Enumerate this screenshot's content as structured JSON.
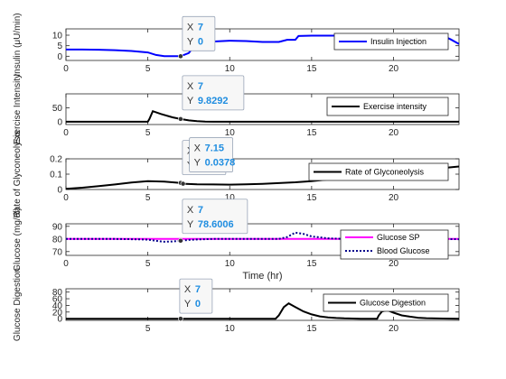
{
  "colors": {
    "insulin": "#0000ff",
    "black": "#000000",
    "glucose_sp": "#ff00ff",
    "blood_glucose": "#00008b",
    "datatip_value": "#1f8de0"
  },
  "chart_data": [
    {
      "type": "line",
      "ylabel": "Insulin (μU/min)",
      "xlim": [
        0,
        24
      ],
      "ylim": [
        -2,
        13
      ],
      "yticks": [
        "0",
        "5",
        "10"
      ],
      "ytick_values": [
        0,
        5,
        10
      ],
      "xticks": [
        "0",
        "5",
        "10",
        "15",
        "20"
      ],
      "xtick_values": [
        0,
        5,
        10,
        15,
        20
      ],
      "legend": [
        "Insulin Injection"
      ],
      "legend_position": "right",
      "series": [
        {
          "name": "Insulin Injection",
          "color": "#0000ff",
          "width": 2,
          "dash": "",
          "x": [
            0,
            1,
            2,
            3,
            4,
            5,
            5.5,
            6,
            7,
            7.5,
            8,
            9,
            10,
            11,
            12,
            13,
            13.5,
            14,
            14.2,
            15,
            16,
            17,
            18,
            19,
            20,
            21,
            22,
            23,
            23.5,
            24
          ],
          "y": [
            3.2,
            3.2,
            3.1,
            2.9,
            2.5,
            1.8,
            0.6,
            0,
            0,
            1.5,
            6.5,
            7,
            7.4,
            7.2,
            6.8,
            6.8,
            7.8,
            7.8,
            9.6,
            9.8,
            9.8,
            9.8,
            9.8,
            9.8,
            9.8,
            9.8,
            9.8,
            9.8,
            8,
            5.8
          ]
        }
      ],
      "datatips": [
        {
          "x_label": "X",
          "x_value": "7",
          "y_label": "Y",
          "y_value": "0",
          "x": 7,
          "y": 0
        }
      ]
    },
    {
      "type": "line",
      "ylabel": "Exercise Intensity",
      "xlim": [
        0,
        24
      ],
      "ylim": [
        -10,
        100
      ],
      "yticks": [
        "0",
        "50"
      ],
      "ytick_values": [
        0,
        50
      ],
      "xticks": [
        "0",
        "5",
        "10",
        "15",
        "20"
      ],
      "xtick_values": [
        0,
        5,
        10,
        15,
        20
      ],
      "legend": [
        "Exercise intensity"
      ],
      "legend_position": "right",
      "series": [
        {
          "name": "Exercise intensity",
          "color": "#000000",
          "width": 2,
          "dash": "",
          "x": [
            0,
            5,
            5.1,
            5.3,
            5.8,
            6.5,
            7,
            7.5,
            8,
            8.5,
            9,
            24
          ],
          "y": [
            0,
            0,
            10,
            38,
            28,
            16,
            9.8,
            5,
            2,
            0.5,
            0,
            0
          ]
        }
      ],
      "datatips": [
        {
          "x_label": "X",
          "x_value": "7",
          "y_label": "Y",
          "y_value": "9.8292",
          "x": 7,
          "y": 9.8292
        }
      ]
    },
    {
      "type": "line",
      "ylabel": "Rate of Glyconeolysis",
      "xlim": [
        0,
        24
      ],
      "ylim": [
        0,
        0.2
      ],
      "yticks": [
        "0",
        "0.1",
        "0.2"
      ],
      "ytick_values": [
        0,
        0.1,
        0.2
      ],
      "xticks": [
        "0",
        "5",
        "10",
        "15",
        "20"
      ],
      "xtick_values": [
        0,
        5,
        10,
        15,
        20
      ],
      "legend": [
        "Rate of Glyconeolysis"
      ],
      "legend_position": "right",
      "series": [
        {
          "name": "Rate of Glyconeolysis",
          "color": "#000000",
          "width": 2,
          "dash": "",
          "x": [
            0,
            1,
            2,
            3,
            4,
            5,
            6,
            7,
            7.15,
            8,
            9,
            10,
            11,
            12,
            13,
            14,
            15,
            16,
            17,
            18,
            19,
            20,
            21,
            22,
            23,
            24
          ],
          "y": [
            0.005,
            0.012,
            0.022,
            0.033,
            0.045,
            0.055,
            0.052,
            0.043,
            0.0378,
            0.034,
            0.033,
            0.032,
            0.034,
            0.037,
            0.042,
            0.047,
            0.055,
            0.065,
            0.078,
            0.09,
            0.1,
            0.11,
            0.12,
            0.13,
            0.14,
            0.15
          ]
        }
      ],
      "datatips": [
        {
          "x_label": "X",
          "x_value": "7",
          "y_label": "Y",
          "y_value": "0.0432",
          "x": 7,
          "y": 0.0432
        },
        {
          "x_label": "X",
          "x_value": "7.15",
          "y_label": "Y",
          "y_value": "0.0378",
          "x": 7.15,
          "y": 0.0378
        }
      ]
    },
    {
      "type": "line",
      "ylabel": "Glucose (mg/dl)",
      "xlim": [
        0,
        24
      ],
      "ylim": [
        67,
        92
      ],
      "yticks": [
        "70",
        "80",
        "90"
      ],
      "ytick_values": [
        70,
        80,
        90
      ],
      "xticks": [
        "0",
        "5",
        "10",
        "15",
        "20"
      ],
      "xtick_values": [
        0,
        5,
        10,
        15,
        20
      ],
      "xlabel": "Time (hr)",
      "legend": [
        "Glucose SP",
        "Blood Glucose"
      ],
      "legend_position": "right",
      "series": [
        {
          "name": "Glucose SP",
          "color": "#ff00ff",
          "width": 2,
          "dash": "",
          "x": [
            0,
            24
          ],
          "y": [
            80,
            80
          ]
        },
        {
          "name": "Blood Glucose",
          "color": "#00008b",
          "width": 2,
          "dash": "2,2",
          "x": [
            0,
            1,
            2,
            3,
            4,
            5,
            5.5,
            6,
            6.5,
            7,
            7.5,
            8,
            9,
            10,
            11,
            12,
            13,
            13.5,
            14,
            14.5,
            15,
            16,
            17,
            18,
            19,
            20,
            21,
            22,
            23,
            24
          ],
          "y": [
            80,
            80,
            80,
            80,
            79.8,
            79.5,
            78.5,
            77.8,
            78,
            78.6,
            79.2,
            79.6,
            80,
            80,
            80,
            80,
            80,
            81.5,
            85,
            84,
            82,
            80.5,
            80,
            80,
            80,
            80,
            80,
            80,
            80,
            79.8
          ]
        }
      ],
      "datatips": [
        {
          "x_label": "X",
          "x_value": "7",
          "y_label": "Y",
          "y_value": "78.6006",
          "x": 7,
          "y": 78.6006
        }
      ]
    },
    {
      "type": "line",
      "ylabel": "Glucose Digestion",
      "xlim": [
        0,
        24
      ],
      "ylim": [
        -5,
        90
      ],
      "yticks": [
        "0",
        "20",
        "40",
        "60",
        "80"
      ],
      "ytick_values": [
        0,
        20,
        40,
        60,
        80
      ],
      "xticks": [
        "5",
        "10",
        "15",
        "20"
      ],
      "xtick_values": [
        5,
        10,
        15,
        20
      ],
      "legend": [
        "Glucose Digestion"
      ],
      "legend_position": "right",
      "series": [
        {
          "name": "Glucose Digestion",
          "color": "#000000",
          "width": 2,
          "dash": "",
          "x": [
            0,
            12.8,
            13,
            13.3,
            13.6,
            14,
            14.5,
            15,
            15.5,
            16,
            16.5,
            17,
            18,
            19,
            19.1,
            19.3,
            19.6,
            20,
            20.5,
            21,
            21.5,
            22,
            23,
            24
          ],
          "y": [
            0,
            0,
            10,
            35,
            46,
            35,
            22,
            13,
            7,
            4,
            2,
            1,
            0,
            0,
            10,
            22,
            26,
            18,
            10,
            6,
            3,
            1.5,
            0.5,
            0
          ]
        }
      ],
      "datatips": [
        {
          "x_label": "X",
          "x_value": "7",
          "y_label": "Y",
          "y_value": "0",
          "x": 7,
          "y": 0
        }
      ]
    }
  ]
}
